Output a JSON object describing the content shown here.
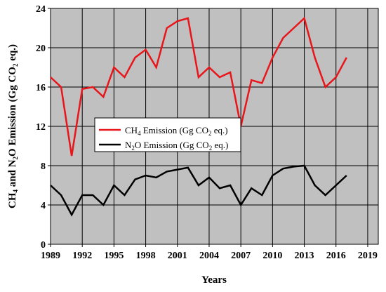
{
  "chart_data": {
    "type": "line",
    "x": [
      1989,
      1990,
      1991,
      1992,
      1993,
      1994,
      1995,
      1996,
      1997,
      1998,
      1999,
      2000,
      2001,
      2002,
      2003,
      2004,
      2005,
      2006,
      2007,
      2008,
      2009,
      2010,
      2011,
      2012,
      2013,
      2014,
      2015,
      2016,
      2017
    ],
    "series": [
      {
        "name": "CH4 Emission (Gg CO2 eq.)",
        "color": "#e8161b",
        "values": [
          17,
          16,
          9,
          15.8,
          16,
          15,
          18,
          17,
          19,
          19.8,
          18,
          22,
          22.7,
          23,
          17,
          18,
          17,
          17.5,
          12,
          16.7,
          16.4,
          19,
          21,
          22,
          23,
          19,
          16,
          17,
          19
        ]
      },
      {
        "name": "N2O Emission (Gg CO2 eq.)",
        "color": "#000000",
        "values": [
          6,
          5,
          3,
          5,
          5,
          4,
          6,
          5,
          6.6,
          7,
          6.8,
          7.4,
          7.6,
          7.8,
          6,
          6.8,
          5.7,
          6,
          4,
          5.7,
          5,
          7,
          7.7,
          7.9,
          8,
          6,
          5,
          6,
          7
        ]
      }
    ],
    "xlabel": "Years",
    "ylabel": "CH4 and N2O Emission (Gg CO2 eq.)",
    "xlim": [
      1989,
      2020
    ],
    "ylim": [
      0,
      24
    ],
    "x_ticks": [
      1989,
      1992,
      1995,
      1998,
      2001,
      2004,
      2007,
      2010,
      2013,
      2016,
      2019
    ],
    "y_ticks": [
      0,
      4,
      8,
      12,
      16,
      20,
      24
    ],
    "grid": true,
    "plot_background": "#c0c0c0",
    "legend_placement": "center-left"
  }
}
